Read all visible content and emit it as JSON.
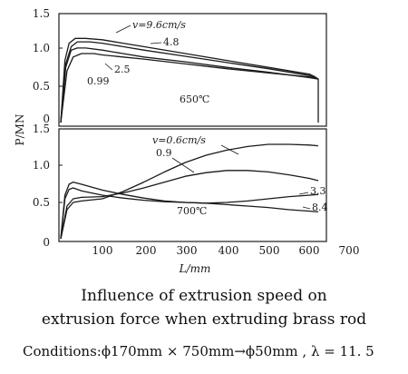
{
  "chart_data": [
    {
      "type": "line",
      "title": "650℃",
      "xlabel": "L/mm",
      "ylabel": "P/MN",
      "xlim": [
        0,
        700
      ],
      "ylim": [
        0,
        1.5
      ],
      "yticks": [
        "1.5",
        "1.0",
        "0.5",
        "0"
      ],
      "grid": false,
      "series": [
        {
          "name": "v=9.6cm/s",
          "label_pos": "top",
          "x": [
            0,
            10,
            20,
            35,
            60,
            100,
            150,
            200,
            300,
            400,
            500,
            600,
            610,
            620,
            620
          ],
          "y": [
            0,
            0.9,
            1.15,
            1.22,
            1.22,
            1.2,
            1.15,
            1.1,
            1.0,
            0.9,
            0.8,
            0.7,
            0.67,
            0.63,
            0
          ]
        },
        {
          "name": "4.8",
          "x": [
            0,
            12,
            25,
            40,
            70,
            100,
            150,
            200,
            300,
            400,
            500,
            600,
            620
          ],
          "y": [
            0,
            0.85,
            1.1,
            1.17,
            1.17,
            1.15,
            1.1,
            1.05,
            0.96,
            0.87,
            0.78,
            0.68,
            0.63
          ]
        },
        {
          "name": "2.5",
          "x": [
            0,
            12,
            25,
            40,
            60,
            100,
            150,
            200,
            300,
            400,
            500,
            600,
            620
          ],
          "y": [
            0,
            0.8,
            1.05,
            1.08,
            1.08,
            1.05,
            1.0,
            0.95,
            0.88,
            0.8,
            0.73,
            0.65,
            0.63
          ]
        },
        {
          "name": "0.99",
          "x": [
            0,
            15,
            30,
            50,
            80,
            100,
            150,
            200,
            300,
            400,
            500,
            600,
            620
          ],
          "y": [
            0,
            0.75,
            0.95,
            1.0,
            1.0,
            0.98,
            0.95,
            0.92,
            0.85,
            0.78,
            0.72,
            0.66,
            0.63
          ]
        }
      ],
      "annotations": [
        "v=9.6cm/s",
        "4.8",
        "2.5",
        "0.99",
        "650℃"
      ]
    },
    {
      "type": "line",
      "title": "700℃",
      "xlabel": "L/mm",
      "ylabel": "P/MN",
      "xlim": [
        0,
        700
      ],
      "ylim": [
        0,
        1.5
      ],
      "xticks": [
        "100",
        "200",
        "300",
        "400",
        "500",
        "600",
        "700"
      ],
      "yticks": [
        "1.5",
        "1.0",
        "0.5",
        "0"
      ],
      "grid": false,
      "series": [
        {
          "name": "v=0.6cm/s",
          "x": [
            0,
            15,
            30,
            50,
            100,
            150,
            200,
            250,
            300,
            350,
            400,
            450,
            500,
            550,
            600,
            620
          ],
          "y": [
            0,
            0.4,
            0.5,
            0.52,
            0.55,
            0.65,
            0.78,
            0.92,
            1.05,
            1.15,
            1.22,
            1.27,
            1.3,
            1.3,
            1.29,
            1.28
          ]
        },
        {
          "name": "0.9",
          "x": [
            0,
            15,
            30,
            50,
            100,
            150,
            200,
            250,
            300,
            350,
            400,
            450,
            500,
            550,
            600,
            620
          ],
          "y": [
            0,
            0.45,
            0.55,
            0.57,
            0.58,
            0.63,
            0.7,
            0.78,
            0.86,
            0.91,
            0.94,
            0.94,
            0.92,
            0.88,
            0.83,
            0.8
          ]
        },
        {
          "name": "3.3",
          "x": [
            0,
            10,
            20,
            30,
            50,
            100,
            150,
            200,
            250,
            300,
            350,
            400,
            450,
            500,
            550,
            600,
            620
          ],
          "y": [
            0,
            0.6,
            0.75,
            0.78,
            0.75,
            0.67,
            0.61,
            0.56,
            0.52,
            0.5,
            0.49,
            0.5,
            0.52,
            0.55,
            0.58,
            0.6,
            0.61
          ]
        },
        {
          "name": "8.4",
          "x": [
            0,
            10,
            20,
            30,
            50,
            100,
            150,
            200,
            250,
            300,
            350,
            400,
            450,
            500,
            550,
            600,
            620
          ],
          "y": [
            0,
            0.55,
            0.68,
            0.7,
            0.66,
            0.6,
            0.56,
            0.53,
            0.51,
            0.5,
            0.49,
            0.47,
            0.45,
            0.43,
            0.4,
            0.38,
            0.37
          ]
        }
      ],
      "annotations": [
        "v=0.6cm/s",
        "0.9",
        "3.3",
        "8.4",
        "700℃"
      ]
    }
  ],
  "caption": {
    "line1": "Influence of extrusion speed on",
    "line2": "extrusion force when extruding brass rod",
    "conditions": "Conditions:ϕ170mm × 750mm→ϕ50mm , λ = 11. 5"
  }
}
